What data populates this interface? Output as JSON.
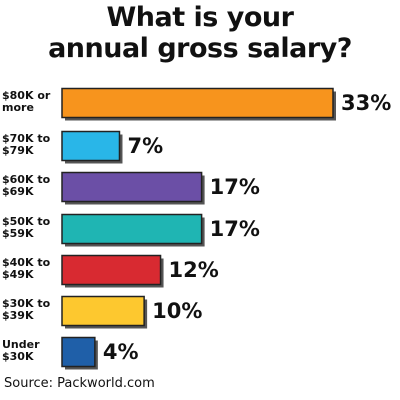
{
  "chart_data": {
    "type": "bar",
    "orientation": "horizontal",
    "title": "What is your\nannual gross salary?",
    "categories": [
      "$80K or\nmore",
      "$70K to\n$79K",
      "$60K to\n$69K",
      "$50K to\n$59K",
      "$40K to\n$49K",
      "$30K to\n$39K",
      "Under\n$30K"
    ],
    "values": [
      33,
      7,
      17,
      17,
      12,
      10,
      4
    ],
    "value_labels": [
      "33%",
      "7%",
      "17%",
      "17%",
      "12%",
      "10%",
      "4%"
    ],
    "colors": [
      "#f7941d",
      "#29b6e8",
      "#6b4fa6",
      "#1fb5b3",
      "#d82a31",
      "#fdc82f",
      "#1f5fa8"
    ],
    "xlim": [
      0,
      33
    ],
    "source": "Source: Packworld.com"
  }
}
